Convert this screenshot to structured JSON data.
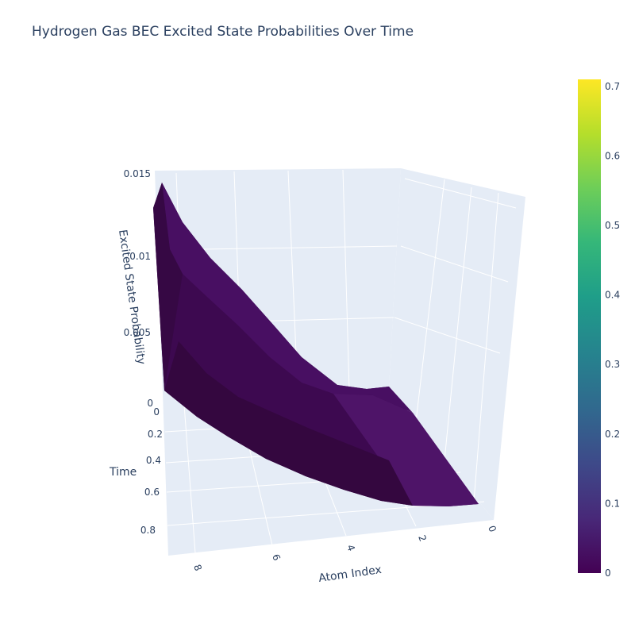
{
  "chart_data": {
    "type": "surface",
    "title": "Hydrogen Gas BEC Excited State Probabilities Over Time",
    "x_axis": {
      "label": "Atom Index",
      "ticks": [
        "0",
        "2",
        "4",
        "6",
        "8"
      ],
      "range": [
        0,
        9
      ]
    },
    "y_axis": {
      "label": "Time",
      "ticks": [
        "0",
        "0.2",
        "0.4",
        "0.6",
        "0.8"
      ],
      "range": [
        0,
        0.9
      ]
    },
    "z_axis": {
      "label": "Excited State Probability",
      "ticks": [
        "0",
        "0.005",
        "0.01",
        "0.015"
      ],
      "range": [
        0,
        0.015
      ]
    },
    "colorscale": "Viridis",
    "colorbar": {
      "ticks": [
        "0",
        "0.1",
        "0.2",
        "0.3",
        "0.4",
        "0.5",
        "0.6",
        "0.7"
      ],
      "range": [
        0,
        0.71
      ]
    },
    "colorscale_stops": [
      "#440154",
      "#482878",
      "#3e4989",
      "#31688e",
      "#26828e",
      "#1f9e89",
      "#35b779",
      "#6ece58",
      "#b5de2b",
      "#fde725"
    ],
    "surface_z": {
      "atom_index": [
        0,
        1,
        2,
        3,
        4,
        5,
        6,
        7,
        8,
        9
      ],
      "time_0": [
        0.0,
        0.0001,
        0.0004,
        0.0009,
        0.0017,
        0.0028,
        0.0043,
        0.0063,
        0.0089,
        0.0124
      ],
      "time_0.9": [
        0.0,
        0.0001,
        0.0004,
        0.001,
        0.0019,
        0.0032,
        0.0049,
        0.0071,
        0.01,
        0.0138
      ]
    }
  }
}
